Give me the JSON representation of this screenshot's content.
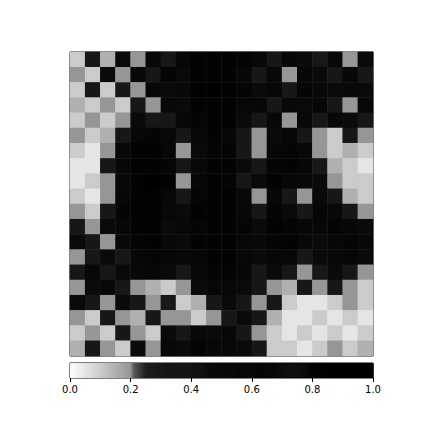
{
  "chart_data": {
    "type": "heatmap",
    "tick_labels": false,
    "cells": [
      [
        0.1,
        0.3,
        0.15,
        0.4,
        0.2,
        0.5,
        0.3,
        0.6,
        0.8,
        0.9,
        0.9,
        0.7,
        0.5,
        0.3,
        0.6,
        0.4,
        0.3,
        0.5,
        0.2,
        0.4
      ],
      [
        0.2,
        0.1,
        0.4,
        0.2,
        0.5,
        0.3,
        0.7,
        0.4,
        0.9,
        0.9,
        0.8,
        0.6,
        0.3,
        0.5,
        0.2,
        0.6,
        0.4,
        0.3,
        0.6,
        0.3
      ],
      [
        0.1,
        0.3,
        0.1,
        0.3,
        0.2,
        0.6,
        0.4,
        0.5,
        0.9,
        1.0,
        0.9,
        0.7,
        0.4,
        0.6,
        0.3,
        0.7,
        0.5,
        0.4,
        0.5,
        0.4
      ],
      [
        0.15,
        0.1,
        0.2,
        0.1,
        0.3,
        0.2,
        0.5,
        0.4,
        0.8,
        0.9,
        0.9,
        0.5,
        0.6,
        0.3,
        0.5,
        0.4,
        0.6,
        0.3,
        0.2,
        0.5
      ],
      [
        0.1,
        0.2,
        0.1,
        0.2,
        0.4,
        0.3,
        0.3,
        0.6,
        0.7,
        0.9,
        0.8,
        0.4,
        0.3,
        0.5,
        0.2,
        0.5,
        0.3,
        0.5,
        0.4,
        0.3
      ],
      [
        0.2,
        0.1,
        0.15,
        0.3,
        0.6,
        0.7,
        0.5,
        0.3,
        0.5,
        0.8,
        0.6,
        0.3,
        0.2,
        0.4,
        0.6,
        0.3,
        0.2,
        0.1,
        0.3,
        0.2
      ],
      [
        0.1,
        0.05,
        0.2,
        0.5,
        0.8,
        0.9,
        0.6,
        0.2,
        0.4,
        0.7,
        0.7,
        0.3,
        0.2,
        0.6,
        0.7,
        0.5,
        0.2,
        0.1,
        0.15,
        0.1
      ],
      [
        0.05,
        0.05,
        0.3,
        0.6,
        0.9,
        0.9,
        0.7,
        0.3,
        0.5,
        0.8,
        0.8,
        0.4,
        0.3,
        0.7,
        0.8,
        0.6,
        0.3,
        0.15,
        0.1,
        0.05
      ],
      [
        0.05,
        0.1,
        0.2,
        0.5,
        0.9,
        1.0,
        0.8,
        0.2,
        0.6,
        0.9,
        0.7,
        0.3,
        0.4,
        0.8,
        0.6,
        0.5,
        0.4,
        0.2,
        0.1,
        0.1
      ],
      [
        0.1,
        0.05,
        0.2,
        0.6,
        0.8,
        0.9,
        0.6,
        0.3,
        0.7,
        0.9,
        0.8,
        0.5,
        0.2,
        0.6,
        0.3,
        0.2,
        0.5,
        0.3,
        0.15,
        0.1
      ],
      [
        0.2,
        0.1,
        0.3,
        0.7,
        0.9,
        0.8,
        0.5,
        0.4,
        0.8,
        0.9,
        0.9,
        0.6,
        0.3,
        0.7,
        0.4,
        0.3,
        0.6,
        0.5,
        0.3,
        0.2
      ],
      [
        0.3,
        0.2,
        0.4,
        0.6,
        0.8,
        0.9,
        0.4,
        0.5,
        0.7,
        0.9,
        0.8,
        0.7,
        0.4,
        0.8,
        0.7,
        0.6,
        0.5,
        0.7,
        0.6,
        0.4
      ],
      [
        0.4,
        0.3,
        0.2,
        0.5,
        0.7,
        0.8,
        0.5,
        0.4,
        0.8,
        0.8,
        0.9,
        0.6,
        0.5,
        0.7,
        0.8,
        0.5,
        0.4,
        0.6,
        0.7,
        0.5
      ],
      [
        0.2,
        0.3,
        0.4,
        0.3,
        0.6,
        0.7,
        0.6,
        0.5,
        0.6,
        0.9,
        0.8,
        0.5,
        0.4,
        0.6,
        0.5,
        0.3,
        0.4,
        0.5,
        0.6,
        0.4
      ],
      [
        0.3,
        0.5,
        0.3,
        0.4,
        0.5,
        0.6,
        0.4,
        0.3,
        0.5,
        0.7,
        0.7,
        0.6,
        0.3,
        0.4,
        0.3,
        0.2,
        0.3,
        0.4,
        0.3,
        0.2
      ],
      [
        0.2,
        0.4,
        0.5,
        0.3,
        0.2,
        0.15,
        0.1,
        0.2,
        0.4,
        0.6,
        0.5,
        0.4,
        0.3,
        0.2,
        0.15,
        0.3,
        0.2,
        0.3,
        0.2,
        0.1
      ],
      [
        0.4,
        0.3,
        0.2,
        0.4,
        0.3,
        0.2,
        0.3,
        0.1,
        0.15,
        0.3,
        0.4,
        0.3,
        0.2,
        0.3,
        0.1,
        0.05,
        0.05,
        0.1,
        0.2,
        0.1
      ],
      [
        0.2,
        0.1,
        0.3,
        0.2,
        0.15,
        0.3,
        0.2,
        0.2,
        0.1,
        0.2,
        0.3,
        0.4,
        0.3,
        0.15,
        0.05,
        0.05,
        0.1,
        0.05,
        0.1,
        0.05
      ],
      [
        0.1,
        0.2,
        0.1,
        0.3,
        0.2,
        0.1,
        0.4,
        0.3,
        0.5,
        0.4,
        0.6,
        0.3,
        0.2,
        0.1,
        0.05,
        0.1,
        0.05,
        0.1,
        0.05,
        0.1
      ],
      [
        0.15,
        0.3,
        0.2,
        0.1,
        0.4,
        0.2,
        0.5,
        0.4,
        0.7,
        0.6,
        0.5,
        0.4,
        0.3,
        0.1,
        0.1,
        0.05,
        0.1,
        0.2,
        0.1,
        0.15
      ]
    ],
    "colorbar_lim": [
      0,
      1
    ],
    "colorbar_ticks": [
      {
        "value": 0,
        "label": "0.0"
      },
      {
        "value": 0.2,
        "label": "0.2"
      },
      {
        "value": 0.4,
        "label": "0.4"
      },
      {
        "value": 0.6,
        "label": "0.6"
      },
      {
        "value": 0.8,
        "label": "0.8"
      },
      {
        "value": 1,
        "label": "1.0"
      }
    ]
  }
}
